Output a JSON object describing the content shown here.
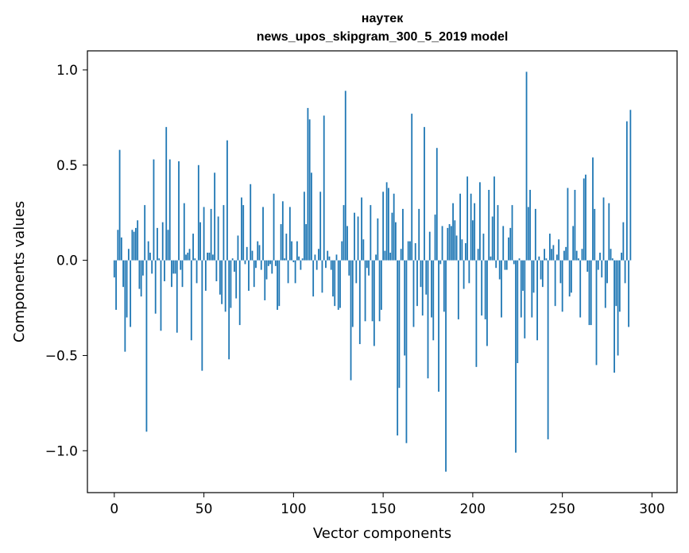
{
  "chart_data": {
    "type": "bar",
    "title_line1": "наутек",
    "title_line2": "news_upos_skipgram_300_5_2019 model",
    "xlabel": "Vector components",
    "ylabel": "Components values",
    "xlim": [
      -15,
      314
    ],
    "ylim": [
      -1.22,
      1.1
    ],
    "xticks": [
      0,
      50,
      100,
      150,
      200,
      250,
      300
    ],
    "xtick_labels": [
      "0",
      "50",
      "100",
      "150",
      "200",
      "250",
      "300"
    ],
    "yticks": [
      1.0,
      0.5,
      0.0,
      -0.5,
      -1.0
    ],
    "ytick_labels": [
      "1.0",
      "0.5",
      "0.0",
      "−0.5",
      "−1.0"
    ],
    "bar_color": "#1f77b4",
    "values": [
      -0.09,
      -0.26,
      0.16,
      0.58,
      0.12,
      -0.14,
      -0.48,
      -0.3,
      0.06,
      -0.35,
      0.16,
      0.15,
      0.17,
      0.21,
      -0.15,
      -0.19,
      -0.08,
      0.29,
      -0.9,
      0.1,
      0.04,
      -0.07,
      0.53,
      -0.28,
      0.17,
      0.01,
      -0.37,
      0.2,
      -0.11,
      0.7,
      0.16,
      0.53,
      -0.14,
      -0.07,
      -0.07,
      -0.38,
      0.52,
      -0.05,
      -0.14,
      0.3,
      0.03,
      0.04,
      0.06,
      -0.42,
      0.14,
      0.01,
      -0.12,
      0.5,
      0.2,
      -0.58,
      0.28,
      -0.16,
      0.04,
      0.04,
      0.27,
      0.03,
      0.46,
      -0.11,
      0.23,
      -0.18,
      -0.23,
      0.29,
      -0.27,
      0.63,
      -0.52,
      -0.25,
      0.01,
      -0.06,
      -0.2,
      0.13,
      -0.34,
      0.33,
      0.29,
      -0.02,
      0.07,
      -0.16,
      0.4,
      0.05,
      -0.14,
      -0.04,
      0.1,
      0.08,
      -0.05,
      0.28,
      -0.21,
      -0.1,
      -0.03,
      -0.02,
      -0.07,
      0.35,
      -0.03,
      -0.26,
      -0.24,
      0.19,
      0.31,
      0.01,
      0.14,
      -0.12,
      0.28,
      0.1,
      -0.01,
      -0.12,
      0.1,
      0.02,
      -0.05,
      0.01,
      0.36,
      0.19,
      0.8,
      0.74,
      0.46,
      -0.19,
      0.03,
      -0.05,
      0.06,
      0.36,
      -0.17,
      0.76,
      -0.04,
      0.05,
      0.02,
      -0.05,
      -0.19,
      -0.24,
      0.03,
      -0.26,
      -0.25,
      0.1,
      0.29,
      0.89,
      0.18,
      -0.08,
      -0.63,
      -0.35,
      0.25,
      -0.12,
      0.23,
      -0.44,
      0.33,
      0.11,
      -0.32,
      -0.04,
      -0.08,
      0.29,
      -0.32,
      -0.45,
      0.03,
      0.22,
      -0.32,
      -0.26,
      0.36,
      0.05,
      0.41,
      0.38,
      0.04,
      0.25,
      0.35,
      0.2,
      -0.92,
      -0.67,
      0.06,
      0.27,
      -0.5,
      -0.96,
      0.1,
      0.1,
      0.77,
      -0.35,
      0.09,
      -0.24,
      0.27,
      -0.14,
      -0.29,
      0.7,
      -0.18,
      -0.62,
      0.15,
      -0.3,
      -0.42,
      0.24,
      0.59,
      -0.69,
      -0.02,
      0.18,
      -0.27,
      -1.11,
      0.17,
      0.19,
      0.18,
      0.3,
      0.21,
      0.13,
      -0.31,
      0.35,
      0.11,
      -0.15,
      0.09,
      0.44,
      -0.12,
      0.35,
      0.21,
      0.3,
      -0.56,
      0.06,
      0.41,
      -0.29,
      0.14,
      -0.31,
      -0.45,
      0.37,
      0.02,
      0.23,
      0.44,
      -0.04,
      0.29,
      -0.1,
      -0.3,
      0.18,
      -0.05,
      -0.05,
      0.12,
      0.17,
      0.29,
      -0.02,
      -1.01,
      -0.54,
      0.01,
      -0.3,
      -0.16,
      -0.41,
      0.99,
      0.28,
      0.37,
      -0.3,
      -0.17,
      0.27,
      -0.42,
      0.02,
      -0.1,
      -0.14,
      0.06,
      0.01,
      -0.94,
      0.14,
      0.06,
      0.08,
      -0.24,
      0.03,
      0.11,
      -0.12,
      -0.27,
      0.05,
      0.07,
      0.38,
      -0.19,
      -0.17,
      0.18,
      0.37,
      0.05,
      0.01,
      -0.3,
      0.06,
      0.43,
      0.45,
      -0.06,
      -0.34,
      -0.34,
      0.54,
      0.27,
      -0.55,
      -0.05,
      0.04,
      -0.09,
      0.33,
      -0.25,
      -0.12,
      0.3,
      0.06,
      0.01,
      -0.59,
      -0.24,
      -0.5,
      -0.27,
      0.04,
      0.2,
      -0.12,
      0.73,
      -0.35,
      0.79
    ]
  }
}
